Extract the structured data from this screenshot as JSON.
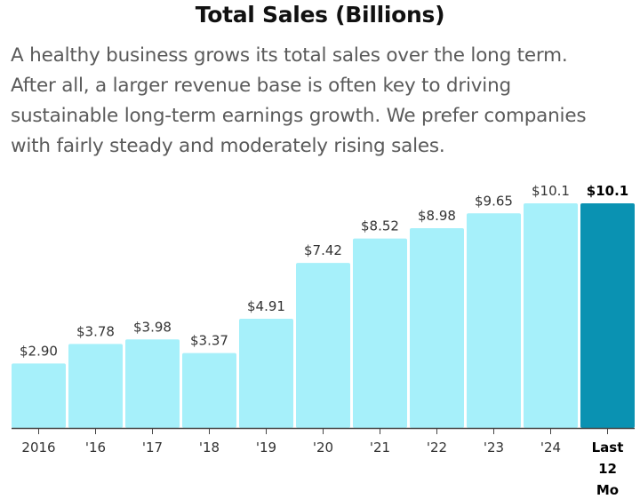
{
  "header": {
    "title": "Total Sales (Billions)",
    "description_lines": [
      "A healthy business grows its total sales over the long term.",
      "After all, a larger revenue base is often key to driving",
      "sustainable long-term earnings growth. We prefer companies",
      "with fairly steady and moderately rising sales."
    ]
  },
  "colors": {
    "bar": "#a6f0fa",
    "bar_highlight": "#0a92b2",
    "axis": "#444444"
  },
  "chart_data": {
    "type": "bar",
    "title": "Total Sales (Billions)",
    "categories": [
      "2016",
      "'16",
      "'17",
      "'18",
      "'19",
      "'20",
      "'21",
      "'22",
      "'23",
      "'24",
      "Last 12 Mo"
    ],
    "values": [
      2.9,
      3.78,
      3.98,
      3.37,
      4.91,
      7.42,
      8.52,
      8.98,
      9.65,
      10.1,
      10.1
    ],
    "value_labels": [
      "$2.90",
      "$3.78",
      "$3.98",
      "$3.37",
      "$4.91",
      "$7.42",
      "$8.52",
      "$8.98",
      "$9.65",
      "$10.1",
      "$10.1"
    ],
    "highlight_index": 10,
    "xlabel": "",
    "ylabel": "",
    "ylim": [
      0,
      10.1
    ],
    "grid": false,
    "legend": "none"
  }
}
